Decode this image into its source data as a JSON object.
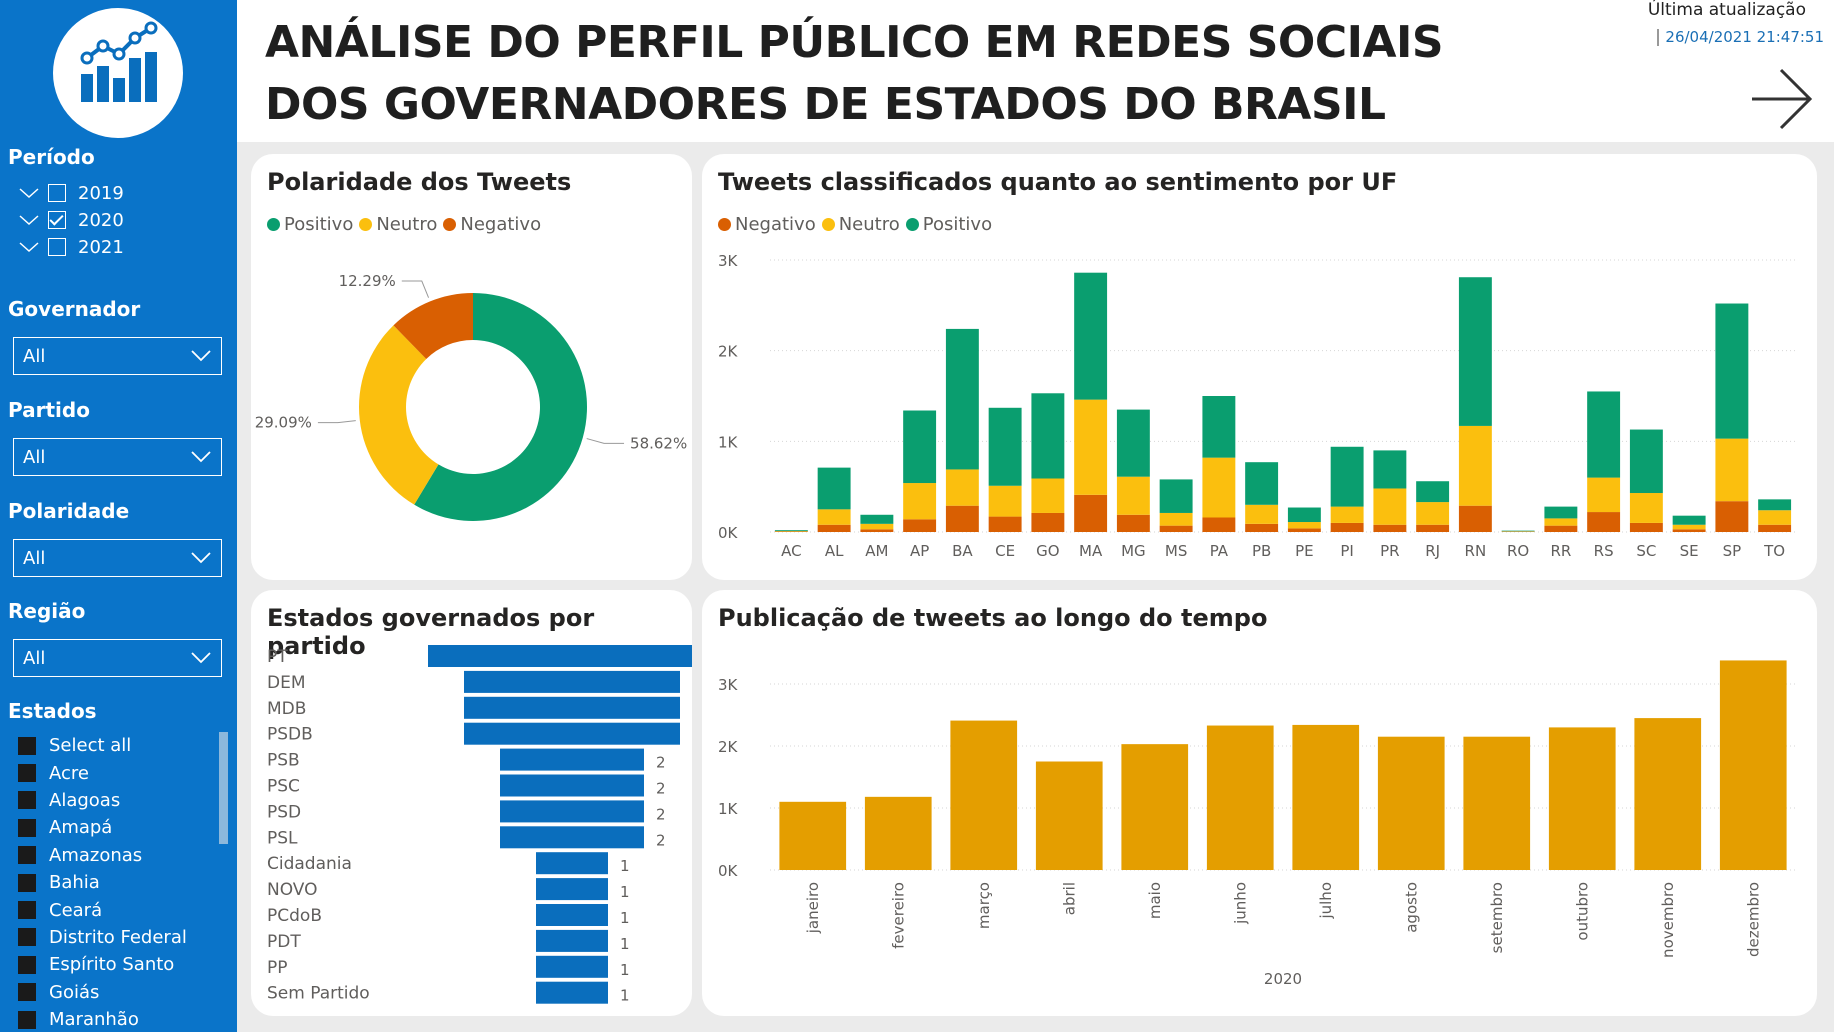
{
  "header": {
    "title_line1": "ANÁLISE DO PERFIL PÚBLICO EM REDES SOCIAIS",
    "title_line2": "DOS GOVERNADORES DE ESTADOS DO BRASIL",
    "update_label": "Última atualização",
    "update_time": "26/04/2021 21:47:51",
    "next_icon": "arrow-right-icon"
  },
  "sidebar": {
    "logo_icon": "bar-chart-growth-icon",
    "period": {
      "title": "Período",
      "years": [
        {
          "label": "2019",
          "checked": false
        },
        {
          "label": "2020",
          "checked": true
        },
        {
          "label": "2021",
          "checked": false
        }
      ]
    },
    "governor": {
      "title": "Governador",
      "value": "All"
    },
    "party": {
      "title": "Partido",
      "value": "All"
    },
    "polarity": {
      "title": "Polaridade",
      "value": "All"
    },
    "region": {
      "title": "Região",
      "value": "All"
    },
    "states": {
      "title": "Estados",
      "items": [
        "Select all",
        "Acre",
        "Alagoas",
        "Amapá",
        "Amazonas",
        "Bahia",
        "Ceará",
        "Distrito Federal",
        "Espírito Santo",
        "Goiás",
        "Maranhão"
      ]
    }
  },
  "colors": {
    "positive": "#0a9e6f",
    "neutral": "#fbbf0e",
    "negative": "#d95f02",
    "party_bar": "#0a6ebd",
    "time_bar": "#e49e00",
    "sidebar": "#0a74c9"
  },
  "polarity_panel": {
    "title": "Polaridade dos Tweets",
    "legend": [
      "Positivo",
      "Neutro",
      "Negativo"
    ]
  },
  "uf_panel": {
    "title": "Tweets classificados quanto ao sentimento por UF",
    "legend": [
      "Negativo",
      "Neutro",
      "Positivo"
    ]
  },
  "party_panel": {
    "title": "Estados governados por partido"
  },
  "time_panel": {
    "title": "Publicação de tweets ao longo do tempo"
  },
  "chart_data": [
    {
      "type": "pie",
      "title": "Polaridade dos Tweets",
      "labels": [
        "Positivo",
        "Neutro",
        "Negativo"
      ],
      "values": [
        58.62,
        29.09,
        12.29
      ],
      "value_labels": [
        "58.62%",
        "29.09%",
        "12.29%"
      ],
      "donut": true,
      "legend": "top-left"
    },
    {
      "type": "bar",
      "stacked": true,
      "title": "Tweets classificados quanto ao sentimento por UF",
      "categories": [
        "AC",
        "AL",
        "AM",
        "AP",
        "BA",
        "CE",
        "GO",
        "MA",
        "MG",
        "MS",
        "PA",
        "PB",
        "PE",
        "PI",
        "PR",
        "RJ",
        "RN",
        "RO",
        "RR",
        "RS",
        "SC",
        "SE",
        "SP",
        "TO"
      ],
      "series": [
        {
          "name": "Negativo",
          "values": [
            5,
            80,
            30,
            140,
            290,
            170,
            210,
            410,
            190,
            70,
            160,
            90,
            40,
            100,
            80,
            80,
            290,
            4,
            70,
            220,
            100,
            30,
            340,
            80
          ]
        },
        {
          "name": "Neutro",
          "values": [
            5,
            170,
            60,
            400,
            400,
            340,
            380,
            1050,
            420,
            140,
            660,
            210,
            70,
            180,
            400,
            250,
            880,
            4,
            80,
            380,
            330,
            50,
            690,
            160
          ]
        },
        {
          "name": "Positivo",
          "values": [
            10,
            460,
            100,
            800,
            1550,
            860,
            940,
            1400,
            740,
            370,
            680,
            470,
            160,
            660,
            420,
            230,
            1640,
            7,
            130,
            950,
            700,
            100,
            1490,
            120
          ]
        }
      ],
      "yticks": [
        "0K",
        "1K",
        "2K",
        "3K"
      ],
      "ylim": [
        0,
        3000
      ],
      "grid": true,
      "legend": "top-left"
    },
    {
      "type": "bar",
      "orientation": "horizontal",
      "title": "Estados governados por partido",
      "categories": [
        "PT",
        "DEM",
        "MDB",
        "PSDB",
        "PSB",
        "PSC",
        "PSD",
        "PSL",
        "Cidadania",
        "NOVO",
        "PCdoB",
        "PDT",
        "PP",
        "Sem Partido"
      ],
      "values": [
        4,
        3,
        3,
        3,
        2,
        2,
        2,
        2,
        1,
        1,
        1,
        1,
        1,
        1
      ],
      "data_labels": [
        "",
        "3",
        "3",
        "3",
        "2",
        "2",
        "2",
        "2",
        "1",
        "1",
        "1",
        "1",
        "1",
        "1"
      ]
    },
    {
      "type": "bar",
      "title": "Publicação de tweets ao longo do tempo",
      "categories": [
        "janeiro",
        "fevereiro",
        "março",
        "abril",
        "maio",
        "junho",
        "julho",
        "agosto",
        "setembro",
        "outubro",
        "novembro",
        "dezembro"
      ],
      "values": [
        1100,
        1180,
        2410,
        1750,
        2030,
        2330,
        2340,
        2150,
        2150,
        2300,
        2450,
        3380
      ],
      "xlabel": "2020",
      "yticks": [
        "0K",
        "1K",
        "2K",
        "3K"
      ],
      "ylim": [
        0,
        3000
      ],
      "grid": true
    }
  ]
}
